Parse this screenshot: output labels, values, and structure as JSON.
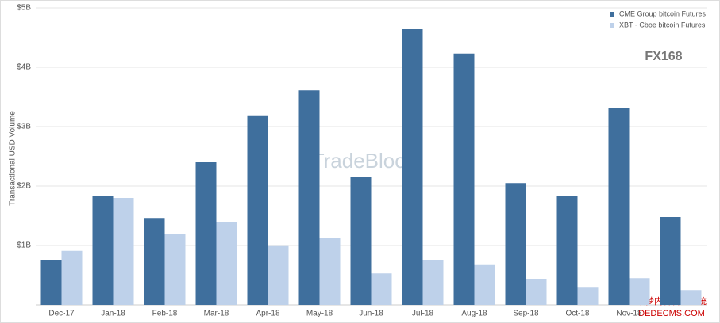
{
  "chart_data": {
    "type": "bar",
    "y_label": "Transactional USD Volume",
    "categories": [
      "Dec-17",
      "Jan-18",
      "Feb-18",
      "Mar-18",
      "Apr-18",
      "May-18",
      "Jun-18",
      "Jul-18",
      "Aug-18",
      "Sep-18",
      "Oct-18",
      "Nov-18",
      null
    ],
    "series": [
      {
        "name": "CME Group bitcoin Futures",
        "color": "#3f6f9d",
        "values": [
          0.75,
          1.84,
          1.45,
          2.4,
          3.19,
          3.61,
          2.16,
          4.64,
          4.23,
          2.05,
          1.84,
          3.32,
          1.48
        ]
      },
      {
        "name": "XBT - Cboe bitcoin Futures",
        "color": "#bed1ea",
        "values": [
          0.91,
          1.8,
          1.2,
          1.39,
          0.99,
          1.12,
          0.53,
          0.75,
          0.67,
          0.43,
          0.29,
          0.45,
          0.25
        ]
      }
    ],
    "ylim": [
      0,
      5
    ],
    "yticks": [
      {
        "value": 1,
        "label": "$1B"
      },
      {
        "value": 2,
        "label": "$2B"
      },
      {
        "value": 3,
        "label": "$3B"
      },
      {
        "value": 4,
        "label": "$4B"
      },
      {
        "value": 5,
        "label": "$5B"
      }
    ],
    "grid": true,
    "legend": "top-right",
    "annotations": [
      "TradeBlock",
      "FX168",
      "织梦内容管理系统",
      "DEDECMS.COM"
    ]
  }
}
